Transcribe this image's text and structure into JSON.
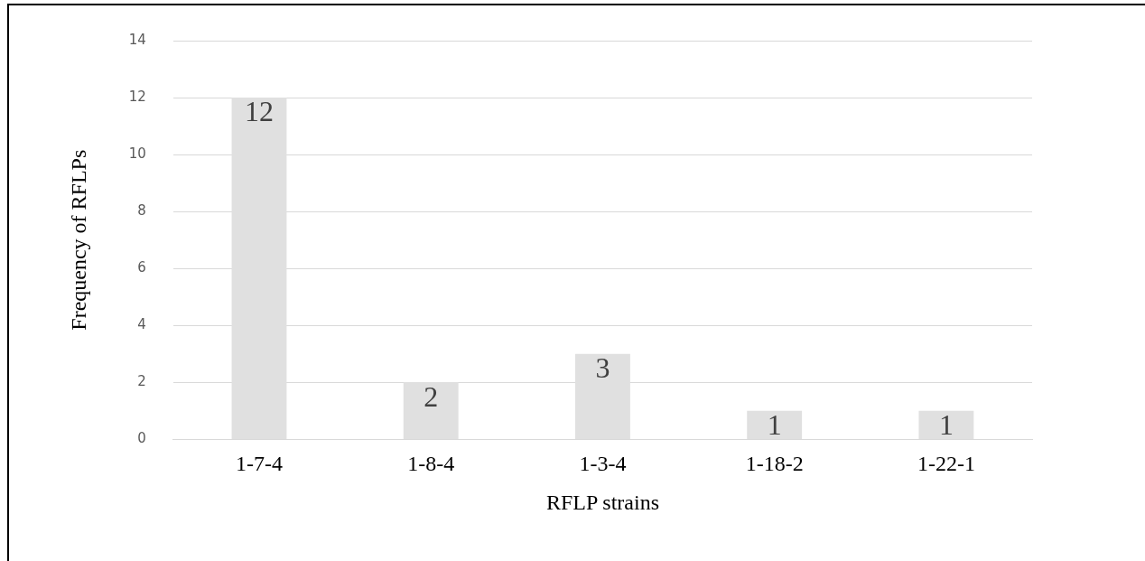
{
  "chart_data": {
    "type": "bar",
    "xlabel": "RFLP strains",
    "ylabel": "Frequency of RFLPs",
    "categories": [
      "1-7-4",
      "1-8-4",
      "1-3-4",
      "1-18-2",
      "1-22-1"
    ],
    "values": [
      12,
      2,
      3,
      1,
      1
    ],
    "color": "#e0e0e0",
    "ylim": [
      0,
      14
    ],
    "yticks": [
      0,
      2,
      4,
      6,
      8,
      10,
      12,
      14
    ],
    "grid": "y",
    "legend": false,
    "data_labels": true
  }
}
